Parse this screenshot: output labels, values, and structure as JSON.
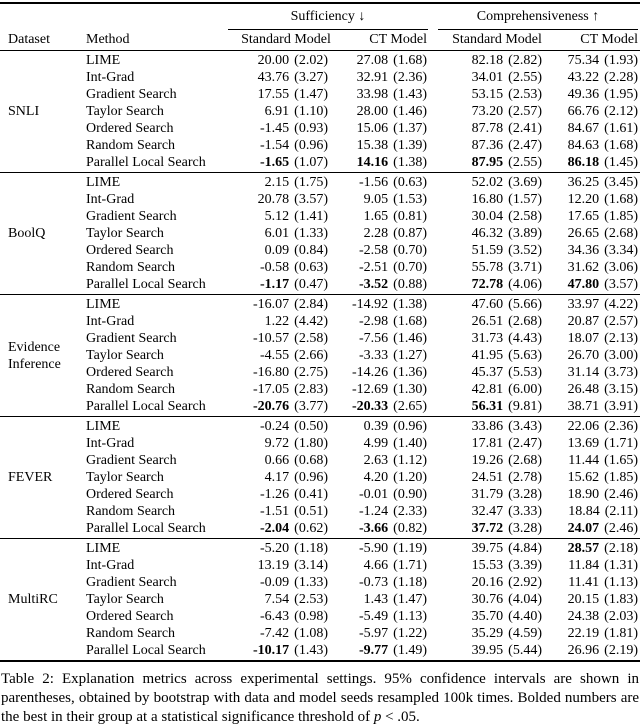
{
  "table": {
    "header": {
      "dataset": "Dataset",
      "method": "Method",
      "sufficiency": "Sufficiency ↓",
      "comprehensiveness": "Comprehensiveness ↑",
      "sub": [
        "Standard Model",
        "CT Model",
        "Standard Model",
        "CT Model"
      ]
    },
    "groups": [
      {
        "dataset": "SNLI",
        "rows": [
          {
            "method": "LIME",
            "cells": [
              {
                "v": "20.00",
                "ci": "(2.02)"
              },
              {
                "v": "27.08",
                "ci": "(1.68)"
              },
              {
                "v": "82.18",
                "ci": "(2.82)"
              },
              {
                "v": "75.34",
                "ci": "(1.93)"
              }
            ]
          },
          {
            "method": "Int-Grad",
            "cells": [
              {
                "v": "43.76",
                "ci": "(3.27)"
              },
              {
                "v": "32.91",
                "ci": "(2.36)"
              },
              {
                "v": "34.01",
                "ci": "(2.55)"
              },
              {
                "v": "43.22",
                "ci": "(2.28)"
              }
            ]
          },
          {
            "method": "Gradient Search",
            "cells": [
              {
                "v": "17.55",
                "ci": "(1.47)"
              },
              {
                "v": "33.98",
                "ci": "(1.43)"
              },
              {
                "v": "53.15",
                "ci": "(2.53)"
              },
              {
                "v": "49.36",
                "ci": "(1.95)"
              }
            ]
          },
          {
            "method": "Taylor Search",
            "cells": [
              {
                "v": "6.91",
                "ci": "(1.10)"
              },
              {
                "v": "28.00",
                "ci": "(1.46)"
              },
              {
                "v": "73.20",
                "ci": "(2.57)"
              },
              {
                "v": "66.76",
                "ci": "(2.12)"
              }
            ]
          },
          {
            "method": "Ordered Search",
            "cells": [
              {
                "v": "-1.45",
                "ci": "(0.93)"
              },
              {
                "v": "15.06",
                "ci": "(1.37)"
              },
              {
                "v": "87.78",
                "ci": "(2.41)"
              },
              {
                "v": "84.67",
                "ci": "(1.61)"
              }
            ]
          },
          {
            "method": "Random Search",
            "cells": [
              {
                "v": "-1.54",
                "ci": "(0.96)"
              },
              {
                "v": "15.38",
                "ci": "(1.39)"
              },
              {
                "v": "87.36",
                "ci": "(2.47)"
              },
              {
                "v": "84.63",
                "ci": "(1.68)"
              }
            ]
          },
          {
            "method": "Parallel Local Search",
            "cells": [
              {
                "v": "-1.65",
                "ci": "(1.07)",
                "b": true
              },
              {
                "v": "14.16",
                "ci": "(1.38)",
                "b": true
              },
              {
                "v": "87.95",
                "ci": "(2.55)",
                "b": true
              },
              {
                "v": "86.18",
                "ci": "(1.45)",
                "b": true
              }
            ]
          }
        ]
      },
      {
        "dataset": "BoolQ",
        "rows": [
          {
            "method": "LIME",
            "cells": [
              {
                "v": "2.15",
                "ci": "(1.75)"
              },
              {
                "v": "-1.56",
                "ci": "(0.63)"
              },
              {
                "v": "52.02",
                "ci": "(3.69)"
              },
              {
                "v": "36.25",
                "ci": "(3.45)"
              }
            ]
          },
          {
            "method": "Int-Grad",
            "cells": [
              {
                "v": "20.78",
                "ci": "(3.57)"
              },
              {
                "v": "9.05",
                "ci": "(1.53)"
              },
              {
                "v": "16.80",
                "ci": "(1.57)"
              },
              {
                "v": "12.20",
                "ci": "(1.68)"
              }
            ]
          },
          {
            "method": "Gradient Search",
            "cells": [
              {
                "v": "5.12",
                "ci": "(1.41)"
              },
              {
                "v": "1.65",
                "ci": "(0.81)"
              },
              {
                "v": "30.04",
                "ci": "(2.58)"
              },
              {
                "v": "17.65",
                "ci": "(1.85)"
              }
            ]
          },
          {
            "method": "Taylor Search",
            "cells": [
              {
                "v": "6.01",
                "ci": "(1.33)"
              },
              {
                "v": "2.28",
                "ci": "(0.87)"
              },
              {
                "v": "46.32",
                "ci": "(3.89)"
              },
              {
                "v": "26.65",
                "ci": "(2.68)"
              }
            ]
          },
          {
            "method": "Ordered Search",
            "cells": [
              {
                "v": "0.09",
                "ci": "(0.84)"
              },
              {
                "v": "-2.58",
                "ci": "(0.70)"
              },
              {
                "v": "51.59",
                "ci": "(3.52)"
              },
              {
                "v": "34.36",
                "ci": "(3.34)"
              }
            ]
          },
          {
            "method": "Random Search",
            "cells": [
              {
                "v": "-0.58",
                "ci": "(0.63)"
              },
              {
                "v": "-2.51",
                "ci": "(0.70)"
              },
              {
                "v": "55.78",
                "ci": "(3.71)"
              },
              {
                "v": "31.62",
                "ci": "(3.06)"
              }
            ]
          },
          {
            "method": "Parallel Local Search",
            "cells": [
              {
                "v": "-1.17",
                "ci": "(0.47)",
                "b": true
              },
              {
                "v": "-3.52",
                "ci": "(0.88)",
                "b": true
              },
              {
                "v": "72.78",
                "ci": "(4.06)",
                "b": true
              },
              {
                "v": "47.80",
                "ci": "(3.57)",
                "b": true
              }
            ]
          }
        ]
      },
      {
        "dataset": "Evidence Inference",
        "rows": [
          {
            "method": "LIME",
            "cells": [
              {
                "v": "-16.07",
                "ci": "(2.84)"
              },
              {
                "v": "-14.92",
                "ci": "(1.38)"
              },
              {
                "v": "47.60",
                "ci": "(5.66)"
              },
              {
                "v": "33.97",
                "ci": "(4.22)"
              }
            ]
          },
          {
            "method": "Int-Grad",
            "cells": [
              {
                "v": "1.22",
                "ci": "(4.42)"
              },
              {
                "v": "-2.98",
                "ci": "(1.68)"
              },
              {
                "v": "26.51",
                "ci": "(2.68)"
              },
              {
                "v": "20.87",
                "ci": "(2.57)"
              }
            ]
          },
          {
            "method": "Gradient Search",
            "cells": [
              {
                "v": "-10.57",
                "ci": "(2.58)"
              },
              {
                "v": "-7.56",
                "ci": "(1.46)"
              },
              {
                "v": "31.73",
                "ci": "(4.43)"
              },
              {
                "v": "18.07",
                "ci": "(2.13)"
              }
            ]
          },
          {
            "method": "Taylor Search",
            "cells": [
              {
                "v": "-4.55",
                "ci": "(2.66)"
              },
              {
                "v": "-3.33",
                "ci": "(1.27)"
              },
              {
                "v": "41.95",
                "ci": "(5.63)"
              },
              {
                "v": "26.70",
                "ci": "(3.00)"
              }
            ]
          },
          {
            "method": "Ordered Search",
            "cells": [
              {
                "v": "-16.80",
                "ci": "(2.75)"
              },
              {
                "v": "-14.26",
                "ci": "(1.36)"
              },
              {
                "v": "45.37",
                "ci": "(5.53)"
              },
              {
                "v": "31.14",
                "ci": "(3.73)"
              }
            ]
          },
          {
            "method": "Random Search",
            "cells": [
              {
                "v": "-17.05",
                "ci": "(2.83)"
              },
              {
                "v": "-12.69",
                "ci": "(1.30)"
              },
              {
                "v": "42.81",
                "ci": "(6.00)"
              },
              {
                "v": "26.48",
                "ci": "(3.15)"
              }
            ]
          },
          {
            "method": "Parallel Local Search",
            "cells": [
              {
                "v": "-20.76",
                "ci": "(3.77)",
                "b": true
              },
              {
                "v": "-20.33",
                "ci": "(2.65)",
                "b": true
              },
              {
                "v": "56.31",
                "ci": "(9.81)",
                "b": true
              },
              {
                "v": "38.71",
                "ci": "(3.91)"
              }
            ]
          }
        ]
      },
      {
        "dataset": "FEVER",
        "rows": [
          {
            "method": "LIME",
            "cells": [
              {
                "v": "-0.24",
                "ci": "(0.50)"
              },
              {
                "v": "0.39",
                "ci": "(0.96)"
              },
              {
                "v": "33.86",
                "ci": "(3.43)"
              },
              {
                "v": "22.06",
                "ci": "(2.36)"
              }
            ]
          },
          {
            "method": "Int-Grad",
            "cells": [
              {
                "v": "9.72",
                "ci": "(1.80)"
              },
              {
                "v": "4.99",
                "ci": "(1.40)"
              },
              {
                "v": "17.81",
                "ci": "(2.47)"
              },
              {
                "v": "13.69",
                "ci": "(1.71)"
              }
            ]
          },
          {
            "method": "Gradient Search",
            "cells": [
              {
                "v": "0.66",
                "ci": "(0.68)"
              },
              {
                "v": "2.63",
                "ci": "(1.12)"
              },
              {
                "v": "19.26",
                "ci": "(2.68)"
              },
              {
                "v": "11.44",
                "ci": "(1.65)"
              }
            ]
          },
          {
            "method": "Taylor Search",
            "cells": [
              {
                "v": "4.17",
                "ci": "(0.96)"
              },
              {
                "v": "4.20",
                "ci": "(1.20)"
              },
              {
                "v": "24.51",
                "ci": "(2.78)"
              },
              {
                "v": "15.62",
                "ci": "(1.85)"
              }
            ]
          },
          {
            "method": "Ordered Search",
            "cells": [
              {
                "v": "-1.26",
                "ci": "(0.41)"
              },
              {
                "v": "-0.01",
                "ci": "(0.90)"
              },
              {
                "v": "31.79",
                "ci": "(3.28)"
              },
              {
                "v": "18.90",
                "ci": "(2.46)"
              }
            ]
          },
          {
            "method": "Random Search",
            "cells": [
              {
                "v": "-1.51",
                "ci": "(0.51)"
              },
              {
                "v": "-1.24",
                "ci": "(2.33)"
              },
              {
                "v": "32.47",
                "ci": "(3.33)"
              },
              {
                "v": "18.84",
                "ci": "(2.11)"
              }
            ]
          },
          {
            "method": "Parallel Local Search",
            "cells": [
              {
                "v": "-2.04",
                "ci": "(0.62)",
                "b": true
              },
              {
                "v": "-3.66",
                "ci": "(0.82)",
                "b": true
              },
              {
                "v": "37.72",
                "ci": "(3.28)",
                "b": true
              },
              {
                "v": "24.07",
                "ci": "(2.46)",
                "b": true
              }
            ]
          }
        ]
      },
      {
        "dataset": "MultiRC",
        "rows": [
          {
            "method": "LIME",
            "cells": [
              {
                "v": "-5.20",
                "ci": "(1.18)"
              },
              {
                "v": "-5.90",
                "ci": "(1.19)"
              },
              {
                "v": "39.75",
                "ci": "(4.84)"
              },
              {
                "v": "28.57",
                "ci": "(2.18)",
                "b": true
              }
            ]
          },
          {
            "method": "Int-Grad",
            "cells": [
              {
                "v": "13.19",
                "ci": "(3.14)"
              },
              {
                "v": "4.66",
                "ci": "(1.71)"
              },
              {
                "v": "15.53",
                "ci": "(3.39)"
              },
              {
                "v": "11.84",
                "ci": "(1.31)"
              }
            ]
          },
          {
            "method": "Gradient Search",
            "cells": [
              {
                "v": "-0.09",
                "ci": "(1.33)"
              },
              {
                "v": "-0.73",
                "ci": "(1.18)"
              },
              {
                "v": "20.16",
                "ci": "(2.92)"
              },
              {
                "v": "11.41",
                "ci": "(1.13)"
              }
            ]
          },
          {
            "method": "Taylor Search",
            "cells": [
              {
                "v": "7.54",
                "ci": "(2.53)"
              },
              {
                "v": "1.43",
                "ci": "(1.47)"
              },
              {
                "v": "30.76",
                "ci": "(4.04)"
              },
              {
                "v": "20.15",
                "ci": "(1.83)"
              }
            ]
          },
          {
            "method": "Ordered Search",
            "cells": [
              {
                "v": "-6.43",
                "ci": "(0.98)"
              },
              {
                "v": "-5.49",
                "ci": "(1.13)"
              },
              {
                "v": "35.70",
                "ci": "(4.40)"
              },
              {
                "v": "24.38",
                "ci": "(2.03)"
              }
            ]
          },
          {
            "method": "Random Search",
            "cells": [
              {
                "v": "-7.42",
                "ci": "(1.08)"
              },
              {
                "v": "-5.97",
                "ci": "(1.22)"
              },
              {
                "v": "35.29",
                "ci": "(4.59)"
              },
              {
                "v": "22.19",
                "ci": "(1.81)"
              }
            ]
          },
          {
            "method": "Parallel Local Search",
            "cells": [
              {
                "v": "-10.17",
                "ci": "(1.43)",
                "b": true
              },
              {
                "v": "-9.77",
                "ci": "(1.49)",
                "b": true
              },
              {
                "v": "39.95",
                "ci": "(5.44)"
              },
              {
                "v": "26.96",
                "ci": "(2.19)"
              }
            ]
          }
        ]
      }
    ],
    "caption": {
      "text": "Table 2: Explanation metrics across experimental settings. 95% confidence intervals are shown in parentheses, obtained by bootstrap with data and model seeds resampled 100k times. Bolded numbers are the best in their group at a statistical significance threshold of ",
      "p_symbol": "p",
      "tail": " < .05."
    }
  }
}
